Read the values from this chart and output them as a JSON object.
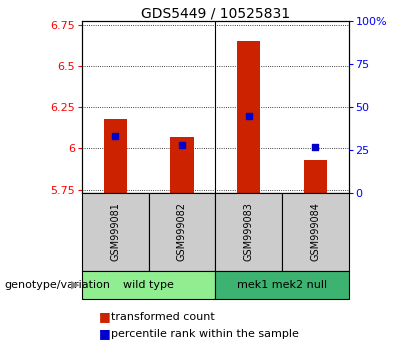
{
  "title": "GDS5449 / 10525831",
  "samples": [
    "GSM999081",
    "GSM999082",
    "GSM999083",
    "GSM999084"
  ],
  "groups": [
    {
      "label": "wild type",
      "indices": [
        0,
        1
      ],
      "color": "#90EE90"
    },
    {
      "label": "mek1 mek2 null",
      "indices": [
        2,
        3
      ],
      "color": "#3CB371"
    }
  ],
  "transformed_counts": [
    6.18,
    6.07,
    6.65,
    5.93
  ],
  "percentile_ranks": [
    33,
    28,
    45,
    27
  ],
  "bar_bottom": 5.73,
  "ylim_left": [
    5.73,
    6.77
  ],
  "yticks_left": [
    5.75,
    6.0,
    6.25,
    6.5,
    6.75
  ],
  "ytick_labels_left": [
    "5.75",
    "6",
    "6.25",
    "6.5",
    "6.75"
  ],
  "ylim_right": [
    0,
    100
  ],
  "yticks_right": [
    0,
    25,
    50,
    75,
    100
  ],
  "ytick_labels_right": [
    "0",
    "25",
    "50",
    "75",
    "100%"
  ],
  "bar_color": "#CC2200",
  "dot_color": "#0000CC",
  "bar_width": 0.35,
  "plot_bg": "#ffffff",
  "sample_label_bg": "#CCCCCC",
  "group_label": "genotype/variation",
  "legend_items": [
    {
      "color": "#CC2200",
      "label": "transformed count"
    },
    {
      "color": "#0000CC",
      "label": "percentile rank within the sample"
    }
  ],
  "title_fontsize": 10,
  "tick_fontsize": 8,
  "sample_fontsize": 7,
  "group_fontsize": 8,
  "legend_fontsize": 8
}
